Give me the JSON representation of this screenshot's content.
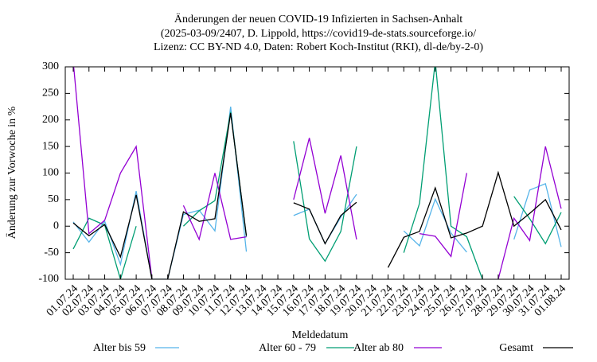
{
  "chart_data": {
    "type": "line",
    "title": [
      "Änderungen der neuen COVID-19 Infizierten in Sachsen-Anhalt",
      "(2025-03-09/2407, D. Lippold, https://covid19-de-stats.sourceforge.io/",
      "Lizenz: CC BY-ND 4.0, Daten: Robert Koch-Institut (RKI), dl-de/by-2-0)"
    ],
    "x_label": "Meldedatum",
    "y_label": "Änderung zur Vorwoche in %",
    "categories": [
      "01.07.24",
      "02.07.24",
      "03.07.24",
      "04.07.24",
      "05.07.24",
      "06.07.24",
      "07.07.24",
      "08.07.24",
      "09.07.24",
      "10.07.24",
      "11.07.24",
      "12.07.24",
      "13.07.24",
      "14.07.24",
      "15.07.24",
      "16.07.24",
      "17.07.24",
      "18.07.24",
      "19.07.24",
      "20.07.24",
      "21.07.24",
      "22.07.24",
      "23.07.24",
      "24.07.24",
      "25.07.24",
      "26.07.24",
      "27.07.24",
      "28.07.24",
      "29.07.24",
      "30.07.24",
      "31.07.24",
      "01.08.24"
    ],
    "ylim": [
      -100,
      300
    ],
    "yticks": [
      -100,
      -50,
      0,
      50,
      100,
      150,
      200,
      250,
      300
    ],
    "series": [
      {
        "name": "Alter bis 59",
        "color": "#56b4e9",
        "values": [
          8,
          -30,
          9,
          -72,
          66,
          -100,
          -100,
          22,
          30,
          -9,
          225,
          -48,
          null,
          null,
          20,
          32,
          -33,
          17,
          60,
          null,
          null,
          -9,
          -37,
          51,
          -13,
          -49,
          null,
          null,
          -25,
          68,
          80,
          -39
        ]
      },
      {
        "name": "Alter 60 - 79",
        "color": "#009e73",
        "values": [
          -43,
          15,
          2,
          -100,
          0,
          null,
          null,
          0,
          29,
          48,
          215,
          -20,
          null,
          null,
          160,
          -24,
          -66,
          -10,
          150,
          null,
          null,
          -50,
          43,
          310,
          0,
          -20,
          -100,
          null,
          56,
          14,
          -33,
          26
        ]
      },
      {
        "name": "Alter ab 80",
        "color": "#9400d3",
        "values": [
          310,
          -14,
          11,
          100,
          150,
          -100,
          null,
          39,
          -25,
          100,
          -25,
          -20,
          null,
          null,
          50,
          166,
          24,
          133,
          -25,
          null,
          null,
          null,
          -14,
          -19,
          -57,
          100,
          null,
          -100,
          15,
          -27,
          150,
          33
        ]
      },
      {
        "name": "Gesamt",
        "color": "#000000",
        "values": [
          6,
          -18,
          3,
          -58,
          59,
          -100,
          -100,
          27,
          9,
          14,
          213,
          -18,
          null,
          null,
          44,
          32,
          -33,
          20,
          45,
          null,
          -78,
          -21,
          -10,
          72,
          -22,
          -13,
          0,
          101,
          0,
          24,
          50,
          -7
        ]
      }
    ]
  }
}
